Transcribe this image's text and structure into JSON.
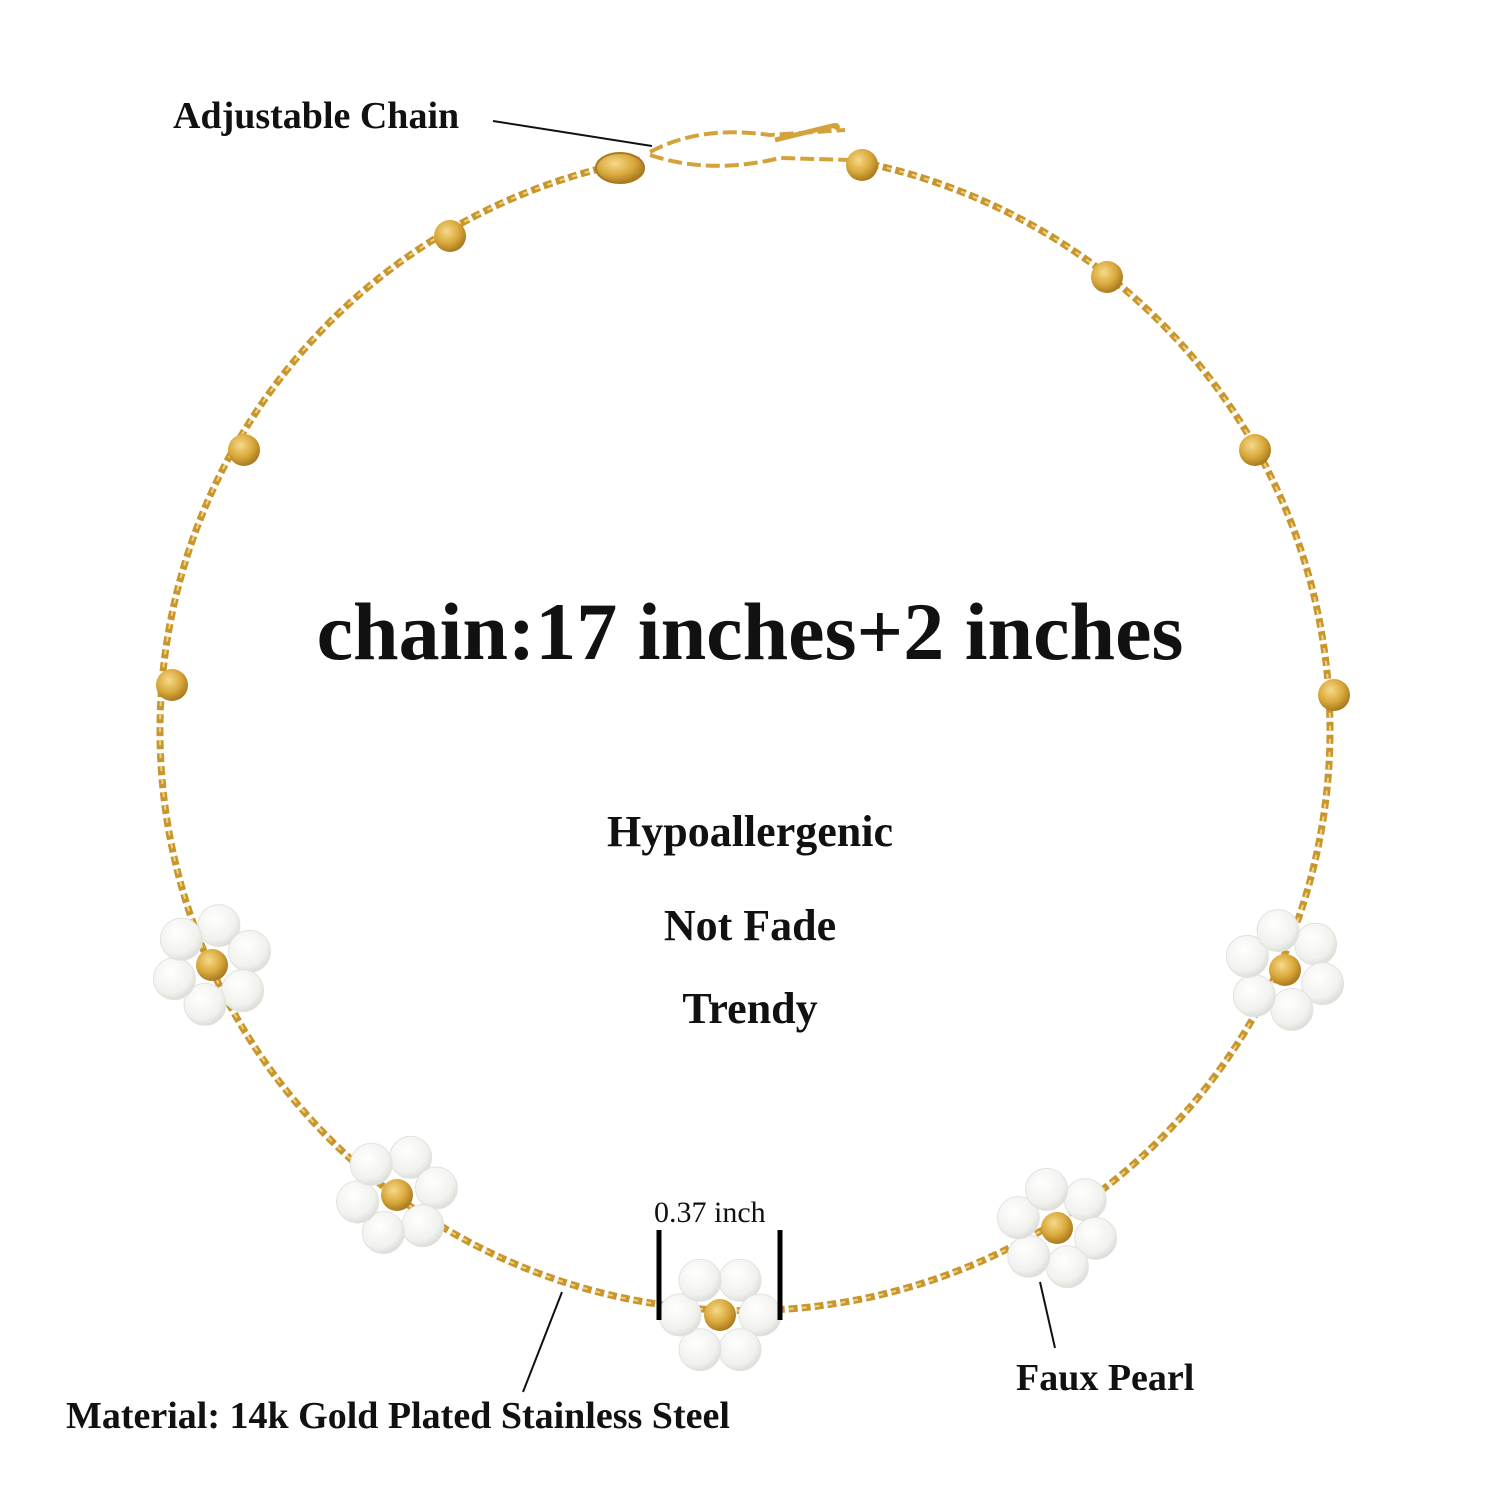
{
  "headline": "chain:17 inches+2 inches",
  "features": [
    "Hypoallergenic",
    "Not Fade",
    "Trendy"
  ],
  "callouts": {
    "adjustable": "Adjustable Chain",
    "material": "Material: 14k Gold Plated Stainless Steel",
    "pearl": "Faux Pearl",
    "dimension": "0.37 inch"
  },
  "colors": {
    "gold": "#d9a83a",
    "gold_dark": "#b8862a",
    "pearl": "#f4f4f2",
    "text": "#111111"
  }
}
